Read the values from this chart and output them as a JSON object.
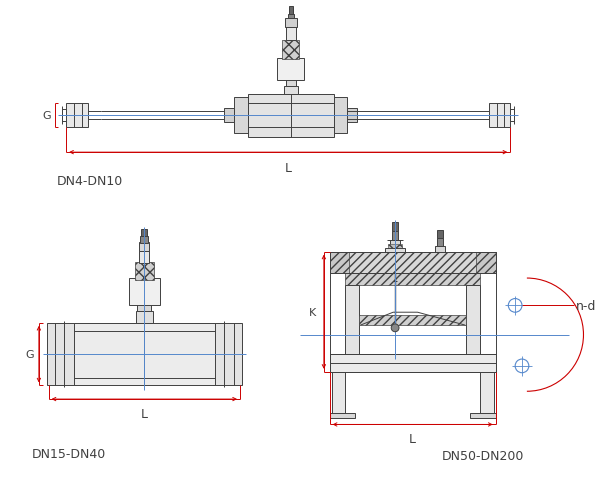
{
  "bg_color": "#ffffff",
  "line_color": "#404040",
  "red_color": "#cc0000",
  "blue_color": "#5588cc",
  "label_dn4": "DN4-DN10",
  "label_dn15": "DN15-DN40",
  "label_dn50": "DN50-DN200",
  "label_L": "L",
  "label_G": "G",
  "label_K": "K",
  "label_nd": "n-d",
  "figsize": [
    6.0,
    4.81
  ],
  "dpi": 100
}
